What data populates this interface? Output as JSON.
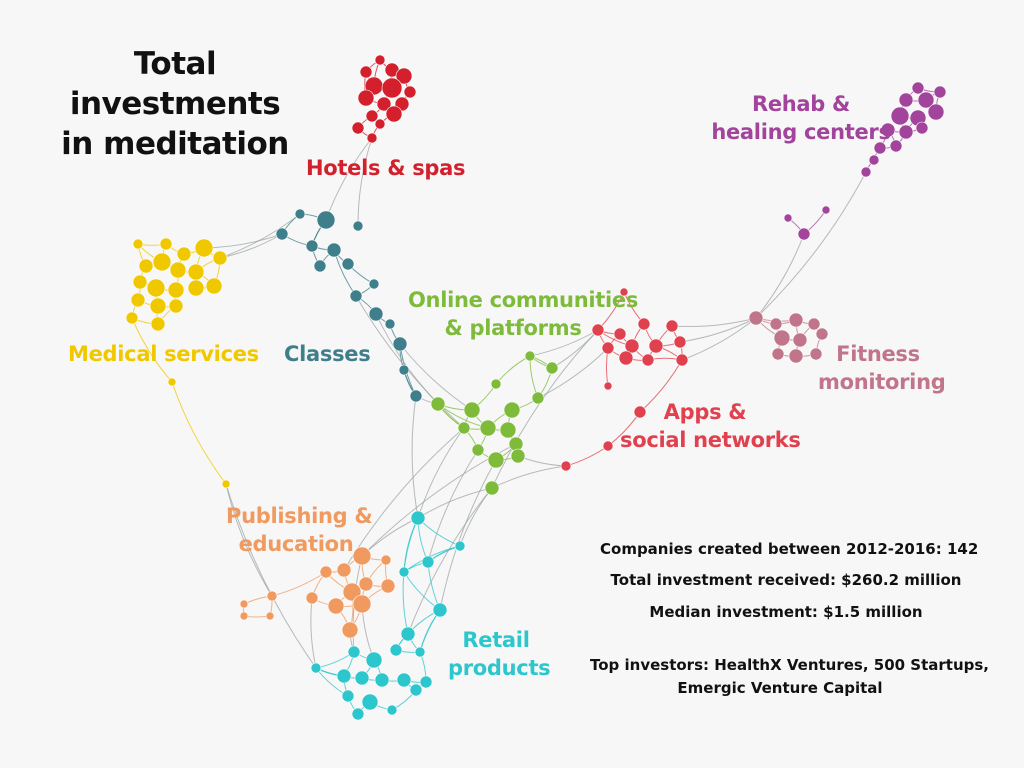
{
  "title": {
    "line1": "Total investments",
    "line2": "in meditation"
  },
  "clusters": {
    "hotels": {
      "line1": "Hotels & spas",
      "color": "#d4202c"
    },
    "rehab": {
      "line1": "Rehab &",
      "line2": "healing centers",
      "color": "#a2439c"
    },
    "medical": {
      "line1": "Medical services",
      "color": "#f0c800"
    },
    "classes": {
      "line1": "Classes",
      "color": "#3f7f8c"
    },
    "online": {
      "line1": "Online communities",
      "line2": "& platforms",
      "color": "#7fbb3b"
    },
    "fitness": {
      "line1": "Fitness",
      "line2": "monitoring",
      "color": "#c0758b"
    },
    "apps": {
      "line1": "Apps &",
      "line2": "social networks",
      "color": "#e0414e"
    },
    "publishing": {
      "line1": "Publishing &",
      "line2": "education",
      "color": "#f09a60"
    },
    "retail": {
      "line1": "Retail",
      "line2": "products",
      "color": "#2cc6cc"
    }
  },
  "stats": {
    "companies": "Companies created between 2012-2016: 142",
    "total": "Total investment received: $260.2 million",
    "median": "Median investment: $1.5 million",
    "investors_line1": "Top investors: HealthX Ventures, 500 Startups,",
    "investors_line2": "Emergic Venture Capital"
  }
}
